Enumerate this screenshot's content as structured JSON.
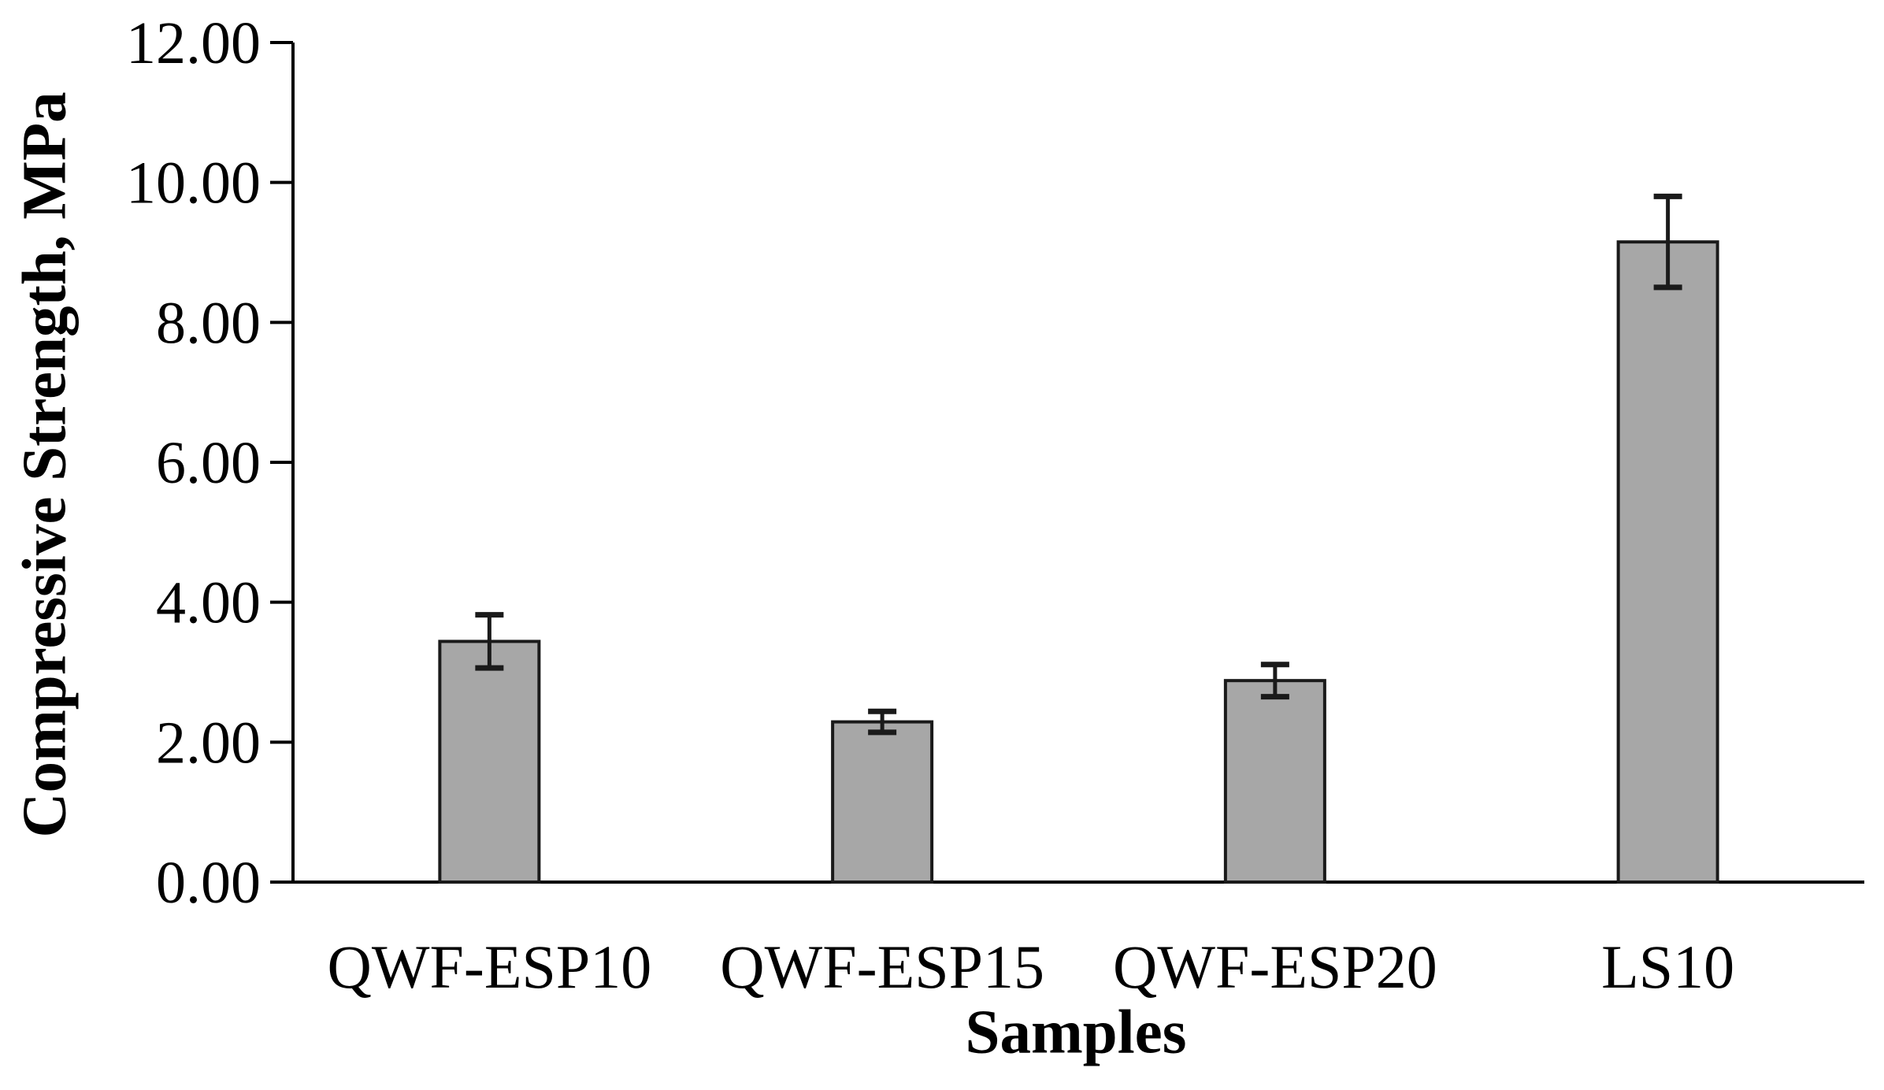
{
  "chart_data": {
    "type": "bar",
    "title": "",
    "xlabel": "Samples",
    "ylabel": "Compressive Strength, MPa",
    "categories": [
      "QWF-ESP10",
      "QWF-ESP15",
      "QWF-ESP20",
      "LS10"
    ],
    "values": [
      3.44,
      2.29,
      2.88,
      9.15
    ],
    "errors": [
      0.38,
      0.15,
      0.23,
      0.65
    ],
    "units": "MPa",
    "ylim": [
      0,
      12
    ],
    "ytick_interval": 2,
    "ytick_labels": [
      "0.00",
      "2.00",
      "4.00",
      "6.00",
      "8.00",
      "10.00",
      "12.00"
    ],
    "grid": false,
    "legend": null,
    "colors": {
      "background": "#FFFFFF",
      "bar_fill": "#A7A7A7",
      "bar_stroke": "#1A1A1A",
      "axis": "#000000",
      "error_bar": "#1A1A1A",
      "text": "#000000"
    }
  }
}
